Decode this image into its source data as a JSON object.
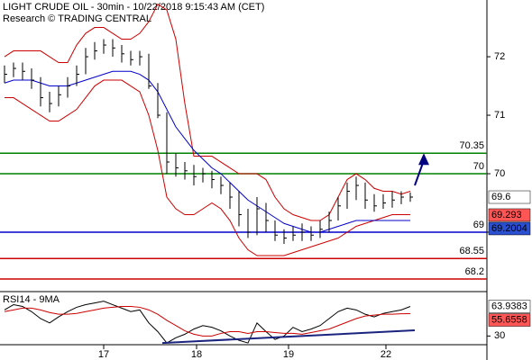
{
  "chart_data": {
    "type": "ohlc",
    "title": "LIGHT CRUDE OIL - 30min - 10/22/2018 9:15:43 AM (CET)",
    "subtitle": "Research © TRADING CENTRAL",
    "categories": [
      null,
      null,
      null,
      null,
      null,
      null,
      null,
      null,
      null,
      null,
      null,
      null,
      null,
      null,
      null,
      null,
      null,
      null,
      null,
      null,
      null,
      null,
      null,
      null,
      null,
      null,
      null,
      null,
      null,
      null,
      null,
      null,
      null,
      null,
      null,
      null,
      null,
      null,
      null,
      null,
      null,
      null,
      null,
      null,
      null,
      null
    ],
    "xlim": [
      -0.5,
      53.5
    ],
    "xticks": [
      {
        "value": 11,
        "label": "17"
      },
      {
        "value": 21.3,
        "label": "18"
      },
      {
        "value": 31.5,
        "label": "19"
      },
      {
        "value": 42.3,
        "label": "22"
      }
    ],
    "ylim": [
      68.0,
      72.97
    ],
    "yticks": [
      72,
      71,
      70,
      69
    ],
    "color": "#000000",
    "high": [
      71.85,
      71.9,
      71.9,
      71.8,
      71.65,
      71.4,
      71.5,
      71.65,
      71.85,
      72.15,
      72.25,
      72.3,
      72.3,
      72.2,
      72.1,
      72.1,
      72.05,
      71.55,
      71.05,
      70.35,
      70.2,
      70.15,
      70.1,
      70.05,
      69.95,
      69.85,
      69.7,
      69.4,
      69.6,
      69.5,
      69.2,
      69.05,
      69.1,
      69.15,
      69.1,
      69.2,
      69.35,
      69.6,
      69.85,
      69.95,
      69.85,
      69.65,
      69.65,
      69.7,
      69.7,
      69.68
    ],
    "low": [
      71.55,
      71.65,
      71.6,
      71.45,
      71.15,
      71.05,
      71.15,
      71.3,
      71.5,
      71.7,
      71.95,
      72.05,
      72.0,
      71.9,
      71.85,
      71.85,
      71.45,
      70.95,
      70.0,
      69.95,
      69.9,
      69.8,
      69.85,
      69.75,
      69.65,
      69.4,
      69.1,
      68.9,
      68.95,
      69.0,
      68.85,
      68.8,
      68.85,
      68.85,
      68.85,
      68.9,
      69.0,
      69.2,
      69.4,
      69.55,
      69.4,
      69.35,
      69.4,
      69.42,
      69.48,
      69.52
    ],
    "close": [
      71.7,
      71.8,
      71.75,
      71.6,
      71.3,
      71.2,
      71.35,
      71.5,
      71.7,
      72.0,
      72.1,
      72.2,
      72.15,
      72.05,
      71.95,
      72.0,
      71.5,
      71.0,
      70.2,
      70.1,
      70.05,
      69.95,
      70.0,
      69.9,
      69.8,
      69.6,
      69.3,
      69.0,
      69.4,
      69.2,
      68.95,
      68.9,
      68.95,
      69.0,
      68.95,
      69.05,
      69.2,
      69.45,
      69.7,
      69.8,
      69.55,
      69.45,
      69.5,
      69.55,
      69.6,
      69.6
    ],
    "bands": {
      "color": "#cc0000",
      "upper": [
        72.0,
        72.1,
        72.1,
        72.1,
        72.1,
        72.0,
        71.9,
        71.9,
        72.2,
        72.4,
        72.5,
        72.5,
        72.4,
        72.3,
        72.3,
        72.4,
        72.6,
        72.9,
        72.8,
        72.3,
        71.2,
        70.3,
        70.3,
        70.3,
        70.2,
        70.1,
        70.0,
        70.0,
        70.0,
        69.9,
        69.6,
        69.4,
        69.3,
        69.25,
        69.2,
        69.2,
        69.3,
        69.6,
        69.9,
        70.0,
        69.9,
        69.75,
        69.7,
        69.7,
        69.65,
        69.7
      ],
      "lower": [
        71.3,
        71.3,
        71.2,
        71.1,
        71.0,
        70.9,
        70.9,
        71.0,
        71.1,
        71.3,
        71.5,
        71.6,
        71.6,
        71.6,
        71.5,
        71.4,
        71.0,
        70.4,
        69.6,
        69.4,
        69.3,
        69.3,
        69.4,
        69.5,
        69.4,
        69.2,
        68.9,
        68.7,
        68.6,
        68.6,
        68.6,
        68.6,
        68.65,
        68.7,
        68.75,
        68.8,
        68.85,
        68.9,
        69.0,
        69.1,
        69.15,
        69.2,
        69.25,
        69.3,
        69.3,
        69.3
      ]
    },
    "ma": {
      "color": "#0000cc",
      "values": [
        71.55,
        71.6,
        71.6,
        71.6,
        71.55,
        71.5,
        71.5,
        71.5,
        71.55,
        71.6,
        71.65,
        71.7,
        71.75,
        71.75,
        71.75,
        71.7,
        71.6,
        71.4,
        71.1,
        70.8,
        70.6,
        70.4,
        70.25,
        70.1,
        70.0,
        69.85,
        69.7,
        69.55,
        69.45,
        69.35,
        69.25,
        69.15,
        69.1,
        69.05,
        69.0,
        69.0,
        69.05,
        69.1,
        69.15,
        69.2,
        69.2,
        69.2,
        69.2,
        69.2,
        69.2,
        69.2
      ]
    },
    "levels": [
      {
        "value": 70.35,
        "label": "70.35",
        "color": "#008000"
      },
      {
        "value": 70,
        "label": "70",
        "color": "#008000"
      },
      {
        "value": 69,
        "label": "69",
        "color": "#0000cc"
      },
      {
        "value": 68.55,
        "label": "68.55",
        "color": "#cc0000"
      },
      {
        "value": 68.2,
        "label": "68.2",
        "color": "#cc0000"
      }
    ],
    "arrow": {
      "color": "#000080",
      "x": [
        45.5,
        46.5
      ],
      "y": [
        69.8,
        70.35
      ]
    },
    "price_tags": [
      {
        "value": 69.6,
        "color": "#ffffff",
        "text_color": "#000000"
      },
      {
        "value": 69.293,
        "color": "#ff5555",
        "text_color": "#000000"
      },
      {
        "value": 69.2004,
        "color": "#2a4fd0",
        "text_color": "#ffffff"
      }
    ],
    "rsi": {
      "title": "RSI14 - 9MA",
      "ylim": [
        20,
        80
      ],
      "yticks": [
        30
      ],
      "series": [
        {
          "color": "#000000",
          "values": [
            60,
            66,
            64,
            58,
            50,
            45,
            52,
            58,
            63,
            66,
            68,
            70,
            66,
            62,
            58,
            60,
            45,
            35,
            22,
            28,
            32,
            38,
            42,
            40,
            36,
            30,
            25,
            22,
            45,
            35,
            26,
            30,
            40,
            35,
            38,
            42,
            50,
            58,
            62,
            60,
            55,
            52,
            56,
            58,
            60,
            63.9383
          ]
        },
        {
          "color": "#cc0000",
          "values": [
            58,
            60,
            62,
            62,
            60,
            57,
            55,
            55,
            56,
            58,
            60,
            62,
            63,
            64,
            64,
            63,
            60,
            55,
            48,
            42,
            36,
            32,
            30,
            30,
            33,
            35,
            35,
            33,
            35,
            35,
            34,
            33,
            33,
            32,
            34,
            36,
            38,
            42,
            46,
            50,
            53,
            54,
            55,
            55,
            55.5,
            55.6558
          ]
        }
      ],
      "trendline": {
        "color": "#1a237e",
        "x": [
          17.5,
          45.5
        ],
        "y": [
          22,
          36.5
        ]
      },
      "price_tags": [
        {
          "value": 63.9383,
          "color": "#ffffff",
          "text_color": "#000000"
        },
        {
          "value": 55.6558,
          "color": "#ff5555",
          "text_color": "#000000"
        }
      ]
    }
  }
}
